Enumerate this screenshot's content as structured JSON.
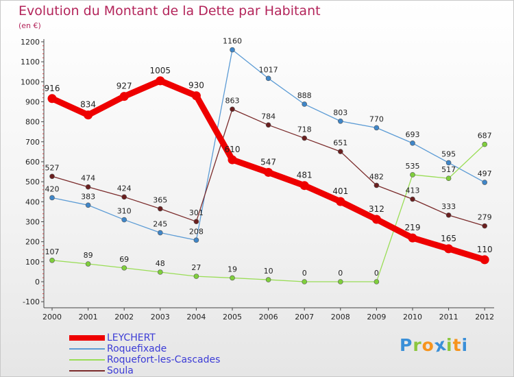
{
  "chart_data": {
    "type": "line",
    "title": "Evolution du Montant de la Dette par Habitant",
    "subtitle": "(en €)",
    "categories": [
      "2000",
      "2001",
      "2002",
      "2003",
      "2004",
      "2005",
      "2006",
      "2007",
      "2008",
      "2009",
      "2010",
      "2011",
      "2012"
    ],
    "ylim": [
      -100,
      1200
    ],
    "yticks": [
      -100,
      0,
      100,
      200,
      300,
      400,
      500,
      600,
      700,
      800,
      900,
      1000,
      1100,
      1200
    ],
    "grid": false,
    "legend_position": "bottom-left",
    "series": [
      {
        "name": "LEYCHERT",
        "color": "#ee0000",
        "values": [
          916,
          834,
          927,
          1005,
          930,
          610,
          547,
          481,
          401,
          312,
          219,
          165,
          110
        ]
      },
      {
        "name": "Roquefixade",
        "color": "#5b9bd5",
        "values": [
          420,
          383,
          310,
          245,
          208,
          1160,
          1017,
          888,
          803,
          770,
          693,
          595,
          497
        ]
      },
      {
        "name": "Roquefort-les-Cascades",
        "color": "#99dd55",
        "values": [
          107,
          89,
          69,
          48,
          27,
          19,
          10,
          0,
          0,
          0,
          535,
          517,
          687
        ]
      },
      {
        "name": "Soula",
        "color": "#7a2a2a",
        "values": [
          527,
          474,
          424,
          365,
          301,
          863,
          784,
          718,
          651,
          482,
          413,
          333,
          279
        ]
      }
    ]
  },
  "logo": {
    "letters": [
      "P",
      "r",
      "o",
      "x",
      "i",
      "t",
      "i"
    ],
    "colors": [
      "#3a8fd8",
      "#8cc63f",
      "#f7941d",
      "#3a8fd8",
      "#8cc63f",
      "#f7941d",
      "#3a8fd8"
    ]
  }
}
